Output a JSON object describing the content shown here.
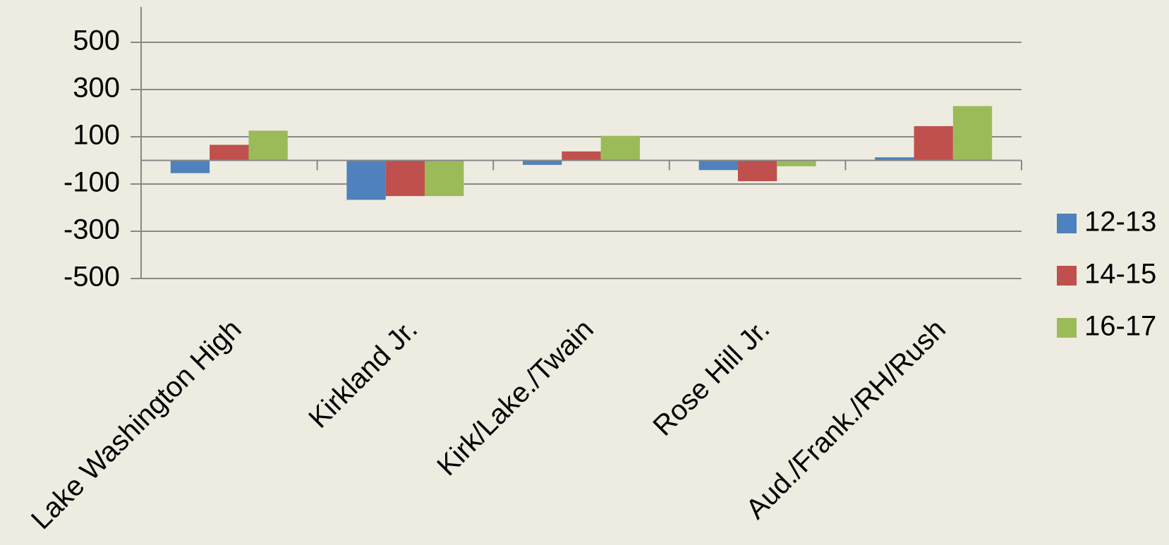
{
  "chart_data": {
    "type": "bar",
    "categories": [
      "Lake Washington High",
      "Kirkland Jr.",
      "Kirk/Lake./Twain",
      "Rose Hill Jr.",
      "Aud./Frank./RH/Rush"
    ],
    "series": [
      {
        "name": "12-13",
        "color": "#4f81bd",
        "values": [
          -54,
          -167,
          -19,
          -41,
          13
        ]
      },
      {
        "name": "14-15",
        "color": "#c0504d",
        "values": [
          66,
          -151,
          38,
          -88,
          145
        ]
      },
      {
        "name": "16-17",
        "color": "#9bbb59",
        "values": [
          126,
          -151,
          104,
          -25,
          230
        ]
      }
    ],
    "ylim": [
      -500,
      650
    ],
    "yticks": [
      500,
      300,
      100,
      -100,
      -300,
      -500
    ],
    "grid": true,
    "legend": "right"
  }
}
